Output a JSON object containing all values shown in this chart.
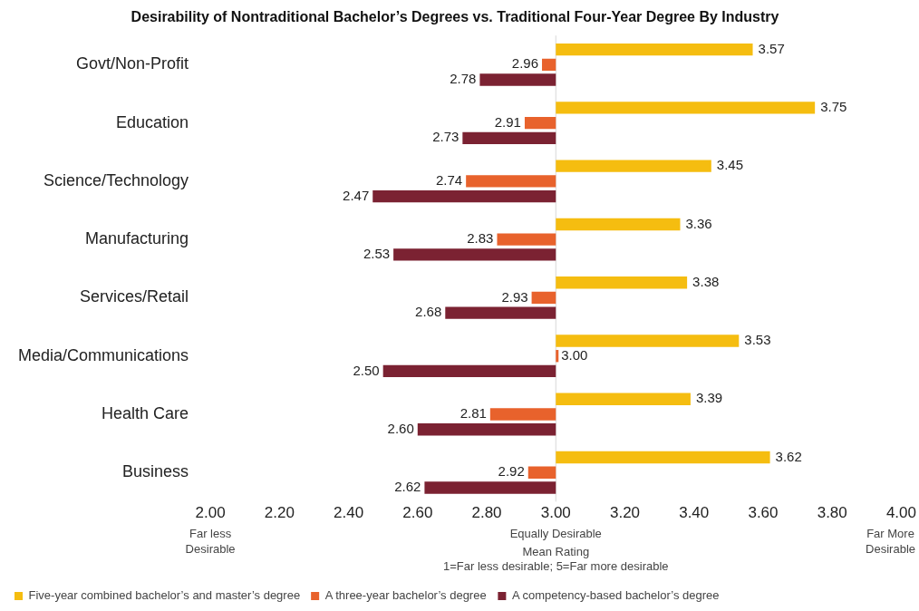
{
  "chart_data": {
    "type": "bar",
    "orientation": "horizontal",
    "title": "Desirability of Nontraditional Bachelor’s Degrees vs. Traditional Four-Year Degree By Industry",
    "xlabel": "Mean Rating\n1=Far less desirable; 5=Far more desirable",
    "categories": [
      "Govt/Non-Profit",
      "Education",
      "Science/Technology",
      "Manufacturing",
      "Services/Retail",
      "Media/Communications",
      "Health Care",
      "Business"
    ],
    "series": [
      {
        "name": "Five-year combined bachelor’s and master’s degree",
        "color": "#f5bd10",
        "base": [
          3,
          3,
          3,
          3,
          3,
          3,
          3,
          3
        ],
        "values": [
          0.57,
          0.75,
          0.45,
          0.36,
          0.38,
          0.53,
          0.39,
          0.62
        ],
        "value_labels": [
          "3.57",
          "3.75",
          "3.45",
          "3.36",
          "3.38",
          "3.53",
          "3.39",
          "3.62"
        ]
      },
      {
        "name": "A three-year bachelor’s degree",
        "color": "#e8622c",
        "base": [
          3,
          3,
          3,
          3,
          3,
          3,
          3,
          3
        ],
        "values": [
          -0.04,
          -0.09,
          -0.26,
          -0.17,
          -0.07,
          0.0,
          -0.19,
          -0.08
        ],
        "value_labels": [
          "2.96",
          "2.91",
          "2.74",
          "2.83",
          "2.93",
          "3.00",
          "2.81",
          "2.92"
        ]
      },
      {
        "name": "A competency-based bachelor’s degree",
        "color": "#7b2232",
        "base": [
          3,
          3,
          3,
          3,
          3,
          3,
          3,
          3
        ],
        "values": [
          -0.22,
          -0.27,
          -0.53,
          -0.47,
          -0.32,
          -0.5,
          -0.4,
          -0.38
        ],
        "value_labels": [
          "2.78",
          "2.73",
          "2.47",
          "2.53",
          "2.68",
          "2.50",
          "2.60",
          "2.62"
        ]
      }
    ],
    "xlim": [
      2,
      4
    ],
    "xticks": [
      {
        "value": 2,
        "label": "2.00"
      },
      {
        "value": 2.2,
        "label": "2.20"
      },
      {
        "value": 2.4,
        "label": "2.40"
      },
      {
        "value": 2.6,
        "label": "2.60"
      },
      {
        "value": 2.8,
        "label": "2.80"
      },
      {
        "value": 3,
        "label": "3.00"
      },
      {
        "value": 3.2,
        "label": "3.20"
      },
      {
        "value": 3.4,
        "label": "3.40"
      },
      {
        "value": 3.6,
        "label": "3.60"
      },
      {
        "value": 3.8,
        "label": "3.80"
      },
      {
        "value": 4,
        "label": "4.00"
      }
    ],
    "ref_lines": [
      {
        "axis": "x",
        "value": 3,
        "color": "#d9d9d9"
      }
    ],
    "annotations": [
      "Far less\nDesirable",
      "Equally Desirable",
      "Far More\nDesirable"
    ],
    "grid": false,
    "legend": "bottom"
  }
}
